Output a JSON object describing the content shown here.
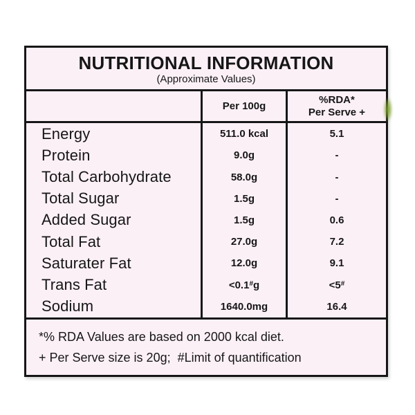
{
  "label": {
    "title": "NUTRITIONAL INFORMATION",
    "subtitle": "(Approximate Values)",
    "header": {
      "per_100g": "Per 100g",
      "rda_line1": "%RDA*",
      "rda_line2": "Per Serve +"
    },
    "rows": [
      {
        "label": "Energy",
        "per_100g": "511.0 kcal",
        "rda_per_serve": "5.1"
      },
      {
        "label": "Protein",
        "per_100g": "9.0g",
        "rda_per_serve": "-"
      },
      {
        "label": "Total Carbohydrate",
        "per_100g": "58.0g",
        "rda_per_serve": "-"
      },
      {
        "label": "Total Sugar",
        "per_100g": "1.5g",
        "rda_per_serve": "-"
      },
      {
        "label": "Added Sugar",
        "per_100g": "1.5g",
        "rda_per_serve": "0.6"
      },
      {
        "label": "Total Fat",
        "per_100g": "27.0g",
        "rda_per_serve": "7.2"
      },
      {
        "label": "Saturater Fat",
        "per_100g": "12.0g",
        "rda_per_serve": "9.1"
      },
      {
        "label": "Trans Fat",
        "per_100g": "<0.1#g",
        "rda_per_serve": "<5#"
      },
      {
        "label": "Sodium",
        "per_100g": "1640.0mg",
        "rda_per_serve": "16.4"
      }
    ],
    "footnotes": {
      "line1": "*% RDA Values are based on 2000 kcal diet.",
      "line2": "+ Per Serve size is 20g;  #Limit of quantification"
    },
    "colors": {
      "panel_background": "#fcf0f7",
      "border_and_text": "#161616",
      "page_background": "#ffffff",
      "artifact_green": "#7ca028"
    }
  }
}
